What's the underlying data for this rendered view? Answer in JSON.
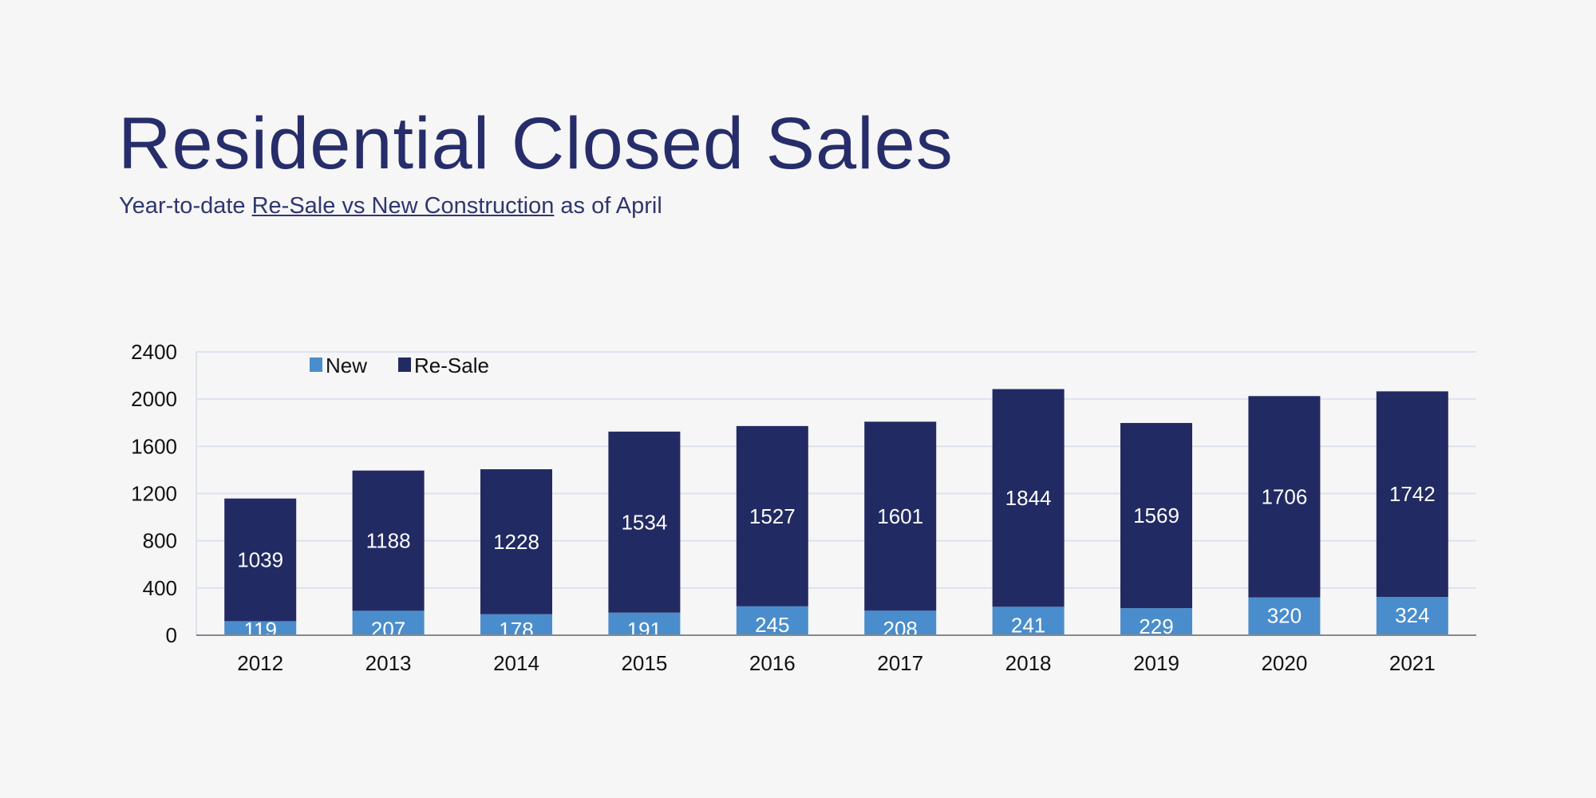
{
  "title": "Residential Closed Sales",
  "subtitle": {
    "prefix": "Year-to-date ",
    "underlined": "Re-Sale vs New Construction",
    "suffix": " as of April"
  },
  "chart_data": {
    "type": "bar",
    "stacked": true,
    "categories": [
      "2012",
      "2013",
      "2014",
      "2015",
      "2016",
      "2017",
      "2018",
      "2019",
      "2020",
      "2021"
    ],
    "series": [
      {
        "name": "New",
        "color": "#4a8dcc",
        "values": [
          119,
          207,
          178,
          191,
          245,
          208,
          241,
          229,
          320,
          324
        ]
      },
      {
        "name": "Re-Sale",
        "color": "#222a63",
        "values": [
          1039,
          1188,
          1228,
          1534,
          1527,
          1601,
          1844,
          1569,
          1706,
          1742
        ]
      }
    ],
    "yticks": [
      0,
      400,
      800,
      1200,
      1600,
      2000,
      2400
    ],
    "ylim": [
      0,
      2400
    ],
    "grid": true,
    "legend": "top-left",
    "data_labels": true
  }
}
